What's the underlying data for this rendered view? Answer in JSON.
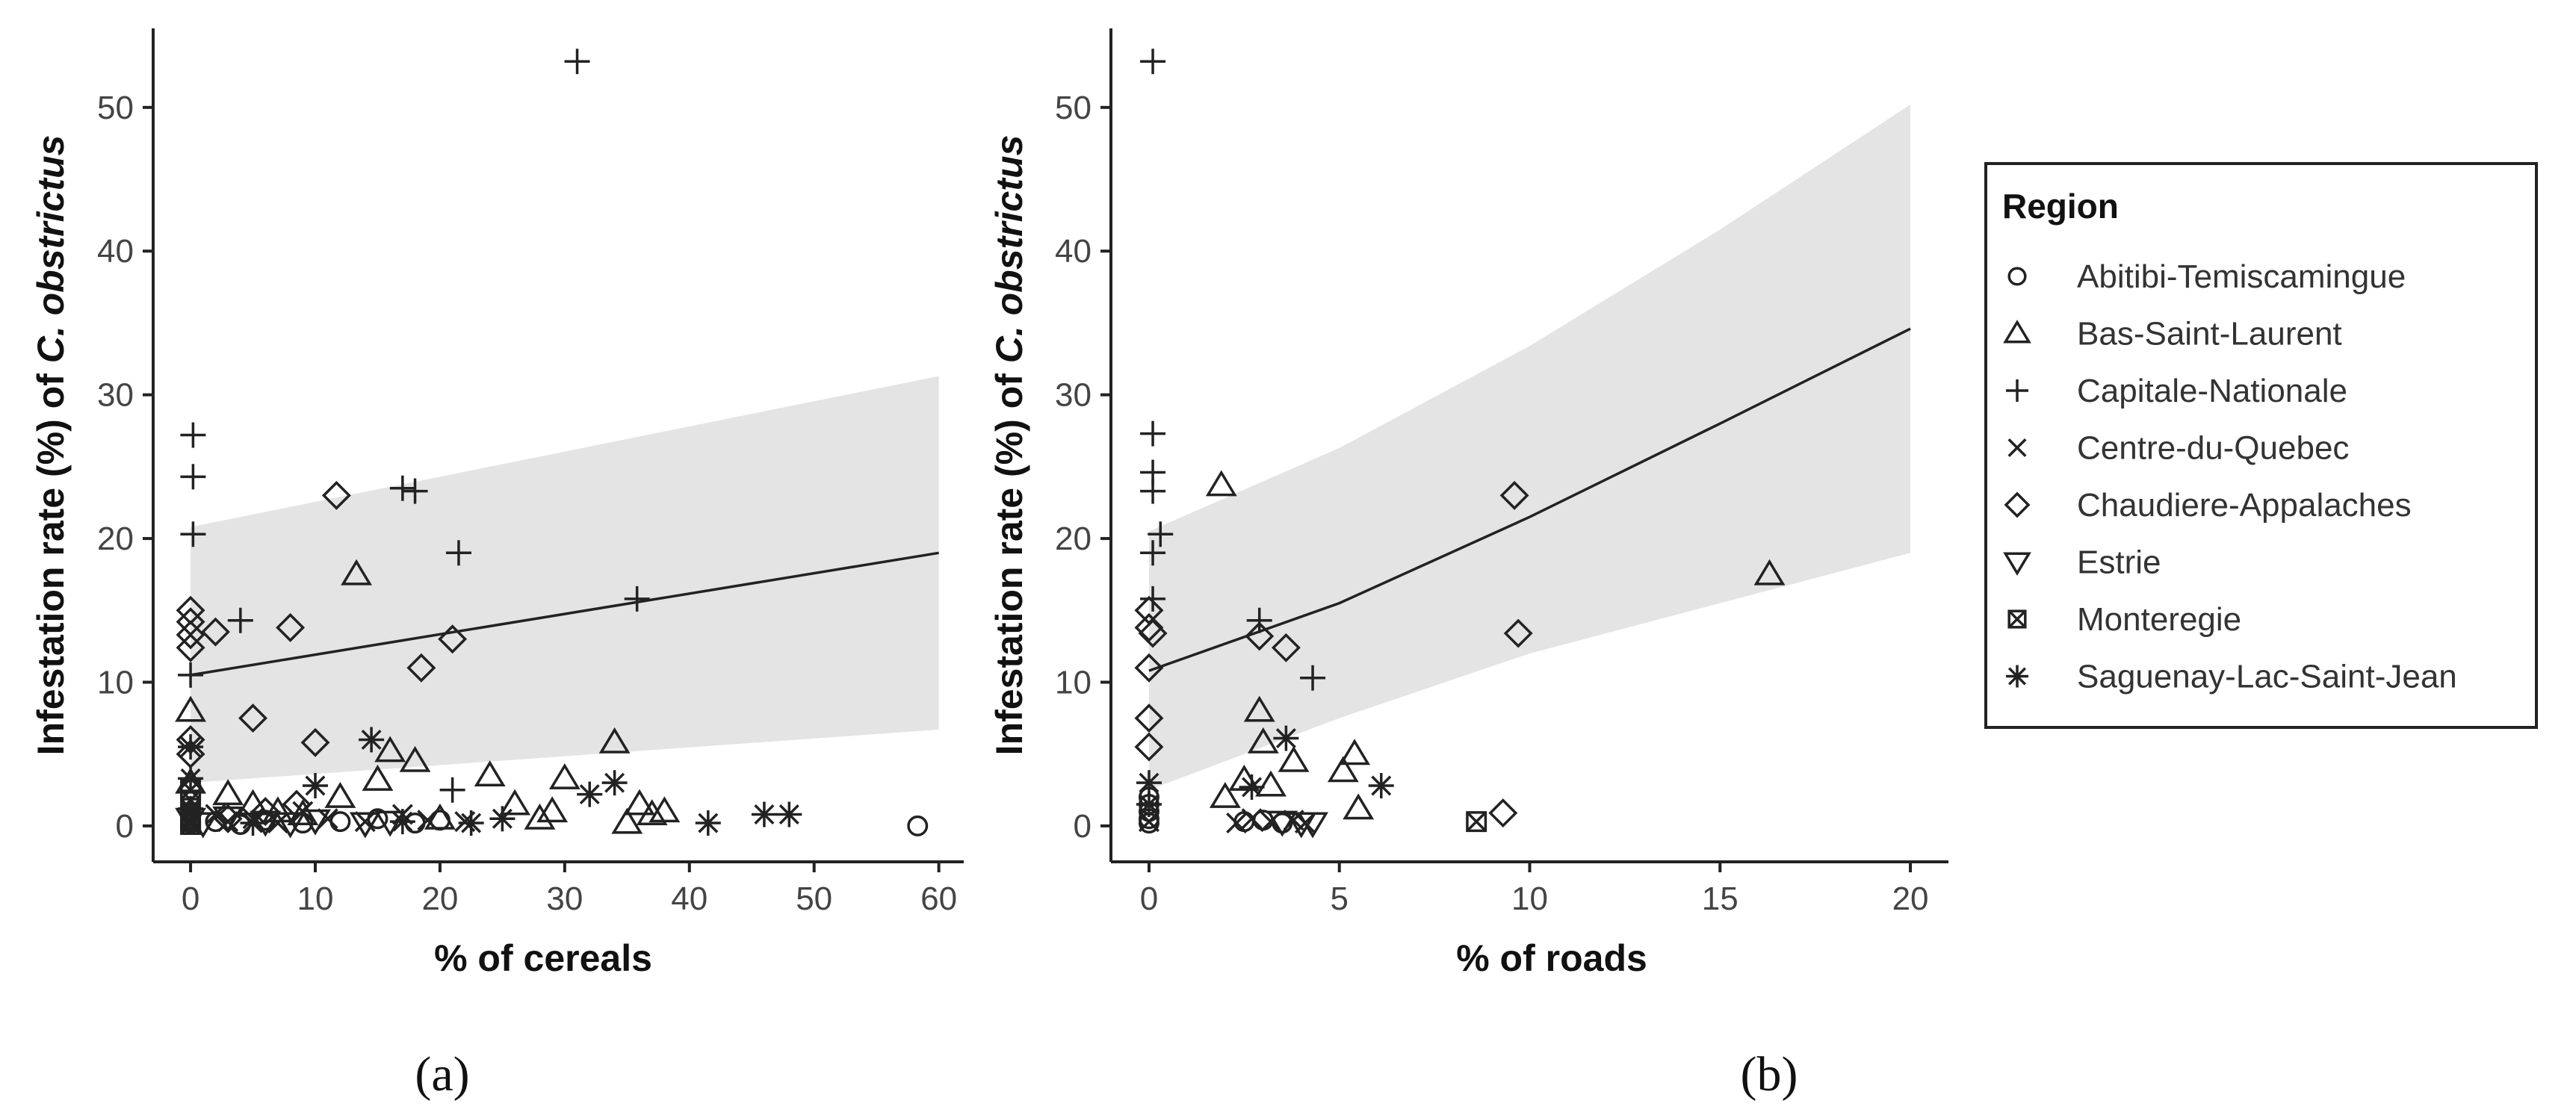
{
  "colors": {
    "ribbon": "#e4e4e4",
    "marker": "#222222",
    "axis": "#222222",
    "text": "#444444"
  },
  "legend": {
    "title": "Region",
    "entries": [
      {
        "label": "Abitibi-Temiscamingue",
        "symbol": "circle"
      },
      {
        "label": "Bas-Saint-Laurent",
        "symbol": "triangle"
      },
      {
        "label": "Capitale-Nationale",
        "symbol": "plus"
      },
      {
        "label": "Centre-du-Quebec",
        "symbol": "cross"
      },
      {
        "label": "Chaudiere-Appalaches",
        "symbol": "diamond"
      },
      {
        "label": "Estrie",
        "symbol": "triangle-down"
      },
      {
        "label": "Monteregie",
        "symbol": "square-x"
      },
      {
        "label": "Saguenay-Lac-Saint-Jean",
        "symbol": "asterisk"
      }
    ]
  },
  "chart_data": [
    {
      "type": "scatter",
      "panel_label": "(a)",
      "xlabel": "% of cereals",
      "ylabel_prefix": "Infestation rate (%) of ",
      "ylabel_species": "C. obstrictus",
      "xlim": [
        -3,
        62
      ],
      "ylim": [
        -2.5,
        55.5
      ],
      "xticks": [
        0,
        10,
        20,
        30,
        40,
        50,
        60
      ],
      "yticks": [
        0,
        10,
        20,
        30,
        40,
        50
      ],
      "fit_line": {
        "x": [
          0,
          60
        ],
        "y": [
          10.5,
          19.0
        ]
      },
      "ribbon": {
        "x": [
          0,
          60
        ],
        "upper": [
          20.8,
          31.3
        ],
        "lower": [
          3.0,
          6.7
        ]
      },
      "series": [
        {
          "region": "Abitibi-Temiscamingue",
          "symbol": "circle",
          "points": [
            [
              0,
              0.2
            ],
            [
              0,
              0.5
            ],
            [
              0,
              0.9
            ],
            [
              2,
              0.3
            ],
            [
              4,
              0.1
            ],
            [
              6,
              0.4
            ],
            [
              9,
              0.2
            ],
            [
              12,
              0.3
            ],
            [
              15,
              0.5
            ],
            [
              18,
              0.2
            ],
            [
              20,
              0.4
            ],
            [
              58.3,
              0
            ]
          ]
        },
        {
          "region": "Bas-Saint-Laurent",
          "symbol": "triangle",
          "points": [
            [
              0,
              8
            ],
            [
              0,
              3
            ],
            [
              3,
              2.2
            ],
            [
              5,
              1.5
            ],
            [
              7,
              1
            ],
            [
              9,
              0.8
            ],
            [
              12,
              2
            ],
            [
              13.3,
              17.5
            ],
            [
              15,
              3.2
            ],
            [
              16,
              5.2
            ],
            [
              18,
              4.5
            ],
            [
              20,
              0.5
            ],
            [
              24,
              3.5
            ],
            [
              26,
              1.5
            ],
            [
              28,
              0.5
            ],
            [
              29,
              1
            ],
            [
              30,
              3.3
            ],
            [
              34,
              5.8
            ],
            [
              35,
              0.2
            ],
            [
              36,
              1.5
            ],
            [
              37,
              0.8
            ],
            [
              38,
              1
            ]
          ]
        },
        {
          "region": "Capitale-Nationale",
          "symbol": "plus",
          "points": [
            [
              0.2,
              27.2
            ],
            [
              0.2,
              24.3
            ],
            [
              0.2,
              20.3
            ],
            [
              0,
              10.5
            ],
            [
              4,
              14.3
            ],
            [
              17,
              23.5
            ],
            [
              18,
              23.3
            ],
            [
              21.5,
              19
            ],
            [
              21,
              2.5
            ],
            [
              31,
              53.2
            ],
            [
              35.8,
              15.8
            ]
          ]
        },
        {
          "region": "Centre-du-Quebec",
          "symbol": "cross",
          "points": [
            [
              0,
              1
            ],
            [
              0,
              0.3
            ],
            [
              2,
              0.8
            ],
            [
              3,
              0.3
            ],
            [
              5,
              0.5
            ],
            [
              7,
              0.2
            ],
            [
              9,
              1
            ],
            [
              11,
              0.5
            ],
            [
              14,
              0.3
            ],
            [
              17,
              0.8
            ],
            [
              19,
              0.4
            ],
            [
              22,
              0.3
            ]
          ]
        },
        {
          "region": "Chaudiere-Appalaches",
          "symbol": "diamond",
          "points": [
            [
              0,
              15
            ],
            [
              0,
              14.2
            ],
            [
              0,
              13.3
            ],
            [
              0,
              12.4
            ],
            [
              0,
              6
            ],
            [
              0,
              5
            ],
            [
              2,
              13.5
            ],
            [
              5,
              7.5
            ],
            [
              8,
              13.8
            ],
            [
              10,
              5.8
            ],
            [
              11.7,
              23
            ],
            [
              18.5,
              11
            ],
            [
              21,
              13
            ],
            [
              3,
              0.5
            ],
            [
              6,
              1
            ],
            [
              8.5,
              1.5
            ]
          ]
        },
        {
          "region": "Estrie",
          "symbol": "triangle-down",
          "points": [
            [
              0,
              0.5
            ],
            [
              1,
              0.2
            ],
            [
              3,
              0.6
            ],
            [
              6,
              0.3
            ],
            [
              8,
              0.2
            ],
            [
              10,
              0.4
            ],
            [
              14,
              0.2
            ],
            [
              16,
              0.3
            ]
          ]
        },
        {
          "region": "Monteregie",
          "symbol": "square-x",
          "points": [
            [
              0,
              0.1
            ],
            [
              0,
              0.4
            ],
            [
              0,
              1.8
            ],
            [
              0,
              2.5
            ]
          ]
        },
        {
          "region": "Saguenay-Lac-Saint-Jean",
          "symbol": "asterisk",
          "points": [
            [
              0,
              5.5
            ],
            [
              0,
              3.3
            ],
            [
              0,
              1.2
            ],
            [
              5,
              0.2
            ],
            [
              10,
              2.8
            ],
            [
              14.5,
              6
            ],
            [
              17,
              0.3
            ],
            [
              22.5,
              0.2
            ],
            [
              25,
              0.5
            ],
            [
              32,
              2.2
            ],
            [
              34,
              3
            ],
            [
              41.5,
              0.2
            ],
            [
              46,
              0.8
            ],
            [
              48,
              0.8
            ]
          ]
        }
      ]
    },
    {
      "type": "scatter",
      "panel_label": "(b)",
      "xlabel": "% of roads",
      "ylabel_prefix": "Infestation rate (%) of ",
      "ylabel_species": "C. obstrictus",
      "xlim": [
        -1,
        21
      ],
      "ylim": [
        -2.5,
        55.5
      ],
      "xticks": [
        0,
        5,
        10,
        15,
        20
      ],
      "yticks": [
        0,
        10,
        20,
        30,
        40,
        50
      ],
      "fit_line": {
        "x": [
          0,
          5,
          10,
          15,
          20
        ],
        "y": [
          10.8,
          15.5,
          21.5,
          28.0,
          34.6
        ]
      },
      "ribbon": {
        "x": [
          0,
          5,
          10,
          15,
          20
        ],
        "upper": [
          20.5,
          26.3,
          33.4,
          41.5,
          50.2
        ],
        "lower": [
          2.5,
          7.5,
          12.0,
          15.5,
          19.0
        ]
      },
      "series": [
        {
          "region": "Abitibi-Temiscamingue",
          "symbol": "circle",
          "points": [
            [
              0,
              0.2
            ],
            [
              0,
              0.5
            ],
            [
              0,
              1
            ],
            [
              0,
              1.5
            ],
            [
              0,
              2
            ],
            [
              2.5,
              0.3
            ],
            [
              3,
              0.4
            ],
            [
              3.5,
              0.2
            ]
          ]
        },
        {
          "region": "Bas-Saint-Laurent",
          "symbol": "triangle",
          "points": [
            [
              1.9,
              23.7
            ],
            [
              2,
              2
            ],
            [
              2.5,
              3.2
            ],
            [
              2.9,
              8
            ],
            [
              3,
              5.8
            ],
            [
              3.2,
              2.8
            ],
            [
              3.8,
              4.5
            ],
            [
              5.1,
              3.8
            ],
            [
              5.4,
              5
            ],
            [
              5.5,
              1.2
            ],
            [
              16.3,
              17.5
            ]
          ]
        },
        {
          "region": "Capitale-Nationale",
          "symbol": "plus",
          "points": [
            [
              0.1,
              53.2
            ],
            [
              0.1,
              27.3
            ],
            [
              0.1,
              24.6
            ],
            [
              0.1,
              23.3
            ],
            [
              0.3,
              20.3
            ],
            [
              0.1,
              19
            ],
            [
              0.1,
              15.8
            ],
            [
              2.9,
              14.3
            ],
            [
              4.3,
              10.3
            ]
          ]
        },
        {
          "region": "Centre-du-Quebec",
          "symbol": "cross",
          "points": [
            [
              0,
              0.3
            ],
            [
              2.3,
              0.2
            ],
            [
              2.7,
              0.5
            ],
            [
              3.2,
              0.3
            ],
            [
              3.8,
              0.4
            ],
            [
              4.1,
              0.2
            ]
          ]
        },
        {
          "region": "Chaudiere-Appalaches",
          "symbol": "diamond",
          "points": [
            [
              0,
              15
            ],
            [
              0,
              13.8
            ],
            [
              0.1,
              13.4
            ],
            [
              0,
              11
            ],
            [
              0,
              7.5
            ],
            [
              0,
              5.5
            ],
            [
              2.9,
              13.2
            ],
            [
              3.6,
              12.4
            ],
            [
              9.6,
              23
            ],
            [
              9.7,
              13.4
            ],
            [
              9.3,
              0.9
            ]
          ]
        },
        {
          "region": "Estrie",
          "symbol": "triangle-down",
          "points": [
            [
              3.5,
              0.3
            ],
            [
              4,
              0.2
            ],
            [
              4.3,
              0.2
            ]
          ]
        },
        {
          "region": "Monteregie",
          "symbol": "square-x",
          "points": [
            [
              8.6,
              0.3
            ]
          ]
        },
        {
          "region": "Saguenay-Lac-Saint-Jean",
          "symbol": "asterisk",
          "points": [
            [
              0,
              3
            ],
            [
              0,
              1.5
            ],
            [
              2.7,
              2.7
            ],
            [
              3.6,
              6.1
            ],
            [
              6.1,
              2.8
            ]
          ]
        }
      ]
    }
  ]
}
